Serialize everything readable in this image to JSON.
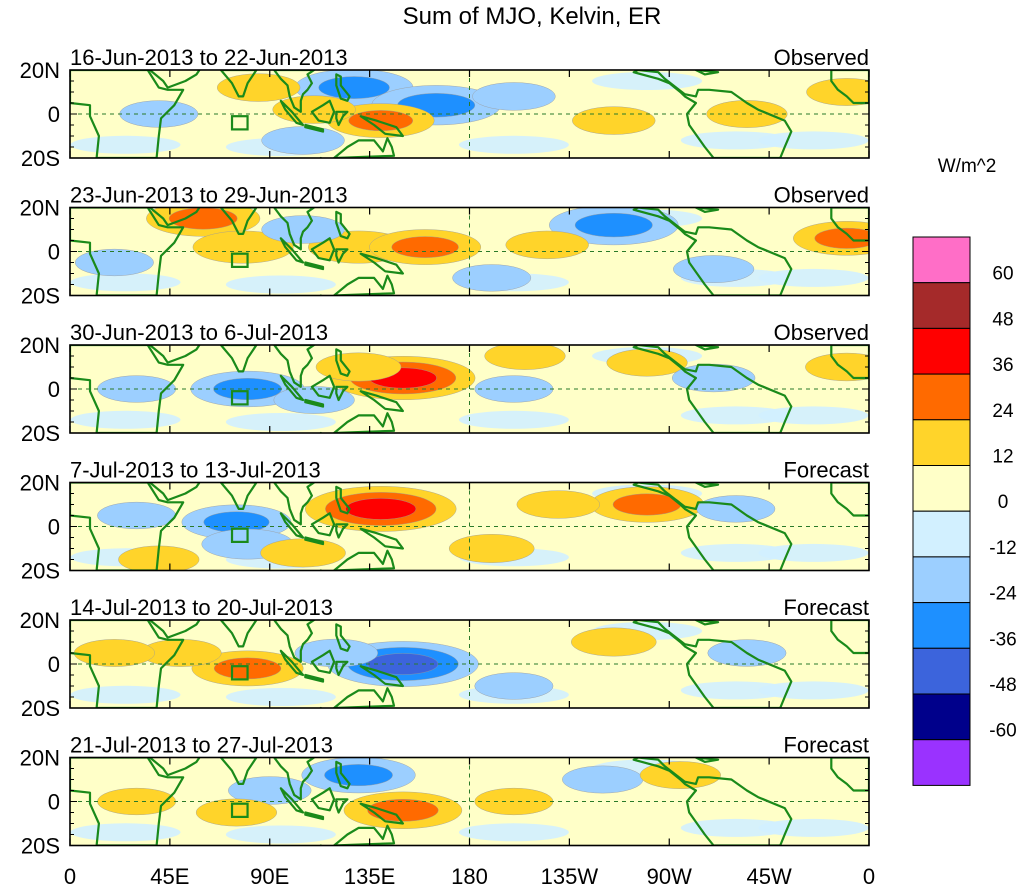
{
  "chart_data": {
    "type": "heatmap",
    "title": "Sum of MJO, Kelvin, ER",
    "colorbar_label": "W/m^2",
    "colorbar_ticks": [
      "60",
      "48",
      "36",
      "24",
      "12",
      "0",
      "-12",
      "-24",
      "-36",
      "-48",
      "-60"
    ],
    "colorbar_bins": [
      {
        "range": "> 60",
        "color": "#ff6ec7"
      },
      {
        "range": "48 to 60",
        "color": "#a52a2a"
      },
      {
        "range": "36 to 48",
        "color": "#ff0000"
      },
      {
        "range": "24 to 36",
        "color": "#ff6a00"
      },
      {
        "range": "12 to 24",
        "color": "#ffd42a"
      },
      {
        "range": "0 to 12",
        "color": "#ffffc8"
      },
      {
        "range": "-12 to 0",
        "color": "#d2f0ff"
      },
      {
        "range": "-24 to -12",
        "color": "#9ccfff"
      },
      {
        "range": "-36 to -24",
        "color": "#1e90ff"
      },
      {
        "range": "-48 to -36",
        "color": "#3c64dc"
      },
      {
        "range": "-60 to -48",
        "color": "#00008b"
      },
      {
        "range": "< -60",
        "color": "#9a32ff"
      }
    ],
    "x_ticks": [
      "0",
      "45E",
      "90E",
      "135E",
      "180",
      "135W",
      "90W",
      "45W",
      "0"
    ],
    "x_range_lon": [
      0,
      360
    ],
    "y_ticks": [
      "20N",
      "0",
      "20S"
    ],
    "y_range_lat": [
      -20,
      20
    ],
    "panels": [
      {
        "period": "16-Jun-2013 to 22-Jun-2013",
        "status": "Observed",
        "anomalies": [
          {
            "lon": 128,
            "lat": 12,
            "value": -30
          },
          {
            "lon": 165,
            "lat": 4,
            "value": -35
          },
          {
            "lon": 140,
            "lat": -3,
            "value": 25
          },
          {
            "lon": 110,
            "lat": 2,
            "value": 14
          },
          {
            "lon": 85,
            "lat": 12,
            "value": 14
          },
          {
            "lon": 245,
            "lat": -3,
            "value": 14
          },
          {
            "lon": 105,
            "lat": -12,
            "value": -14
          },
          {
            "lon": 200,
            "lat": 8,
            "value": -14
          },
          {
            "lon": 305,
            "lat": 0,
            "value": 13
          },
          {
            "lon": 40,
            "lat": 0,
            "value": -12
          },
          {
            "lon": 350,
            "lat": 10,
            "value": 13
          }
        ]
      },
      {
        "period": "23-Jun-2013 to 29-Jun-2013",
        "status": "Observed",
        "anomalies": [
          {
            "lon": 60,
            "lat": 15,
            "value": 28
          },
          {
            "lon": 78,
            "lat": 2,
            "value": 22
          },
          {
            "lon": 130,
            "lat": 2,
            "value": 22
          },
          {
            "lon": 160,
            "lat": 2,
            "value": 27
          },
          {
            "lon": 245,
            "lat": 12,
            "value": -35
          },
          {
            "lon": 215,
            "lat": 3,
            "value": 14
          },
          {
            "lon": 350,
            "lat": 6,
            "value": 25
          },
          {
            "lon": 105,
            "lat": 10,
            "value": -14
          },
          {
            "lon": 290,
            "lat": -8,
            "value": -13
          },
          {
            "lon": 20,
            "lat": -5,
            "value": -12
          },
          {
            "lon": 190,
            "lat": -12,
            "value": -12
          }
        ]
      },
      {
        "period": "30-Jun-2013 to 6-Jul-2013",
        "status": "Observed",
        "anomalies": [
          {
            "lon": 150,
            "lat": 5,
            "value": 42
          },
          {
            "lon": 80,
            "lat": 0,
            "value": -28
          },
          {
            "lon": 110,
            "lat": -5,
            "value": -13
          },
          {
            "lon": 130,
            "lat": 10,
            "value": 15
          },
          {
            "lon": 205,
            "lat": 15,
            "value": 13
          },
          {
            "lon": 260,
            "lat": 12,
            "value": 13
          },
          {
            "lon": 290,
            "lat": 5,
            "value": -14
          },
          {
            "lon": 30,
            "lat": 0,
            "value": -12
          },
          {
            "lon": 350,
            "lat": 10,
            "value": 14
          },
          {
            "lon": 200,
            "lat": 0,
            "value": -12
          }
        ]
      },
      {
        "period": "7-Jul-2013 to 13-Jul-2013",
        "status": "Forecast",
        "anomalies": [
          {
            "lon": 140,
            "lat": 8,
            "value": 45
          },
          {
            "lon": 75,
            "lat": 2,
            "value": -26
          },
          {
            "lon": 80,
            "lat": -8,
            "value": -18
          },
          {
            "lon": 105,
            "lat": -12,
            "value": 15
          },
          {
            "lon": 260,
            "lat": 10,
            "value": 28
          },
          {
            "lon": 220,
            "lat": 10,
            "value": 14
          },
          {
            "lon": 190,
            "lat": -10,
            "value": 15
          },
          {
            "lon": 300,
            "lat": 8,
            "value": -12
          },
          {
            "lon": 30,
            "lat": 5,
            "value": -12
          },
          {
            "lon": 40,
            "lat": -15,
            "value": 13
          }
        ]
      },
      {
        "period": "14-Jul-2013 to 20-Jul-2013",
        "status": "Forecast",
        "anomalies": [
          {
            "lon": 150,
            "lat": 0,
            "value": -45
          },
          {
            "lon": 80,
            "lat": -2,
            "value": 27
          },
          {
            "lon": 120,
            "lat": 5,
            "value": -14
          },
          {
            "lon": 245,
            "lat": 10,
            "value": 15
          },
          {
            "lon": 50,
            "lat": 5,
            "value": 13
          },
          {
            "lon": 200,
            "lat": -10,
            "value": -12
          },
          {
            "lon": 305,
            "lat": 5,
            "value": -12
          },
          {
            "lon": 20,
            "lat": 5,
            "value": 13
          }
        ]
      },
      {
        "period": "21-Jul-2013 to 27-Jul-2013",
        "status": "Forecast",
        "anomalies": [
          {
            "lon": 130,
            "lat": 12,
            "value": -28
          },
          {
            "lon": 150,
            "lat": -4,
            "value": 30
          },
          {
            "lon": 90,
            "lat": 5,
            "value": -14
          },
          {
            "lon": 75,
            "lat": -5,
            "value": 13
          },
          {
            "lon": 240,
            "lat": 10,
            "value": -13
          },
          {
            "lon": 275,
            "lat": 12,
            "value": 13
          },
          {
            "lon": 30,
            "lat": 0,
            "value": 12
          },
          {
            "lon": 200,
            "lat": 0,
            "value": 12
          }
        ]
      }
    ]
  }
}
